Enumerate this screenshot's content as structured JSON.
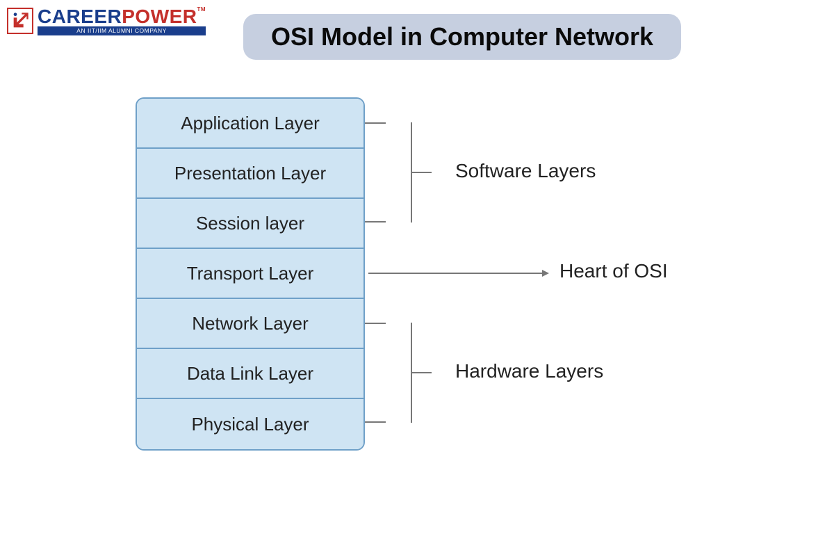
{
  "logo": {
    "line1_a": "CAREER",
    "line1_b": "POWER",
    "tm": "TM",
    "tagline": "AN IIT/IIM ALUMNI COMPANY",
    "color_career": "#1a3e8c",
    "color_power": "#c4302b",
    "tagline_bg": "#1a3e8c"
  },
  "title": {
    "text": "OSI Model in Computer Network",
    "bg": "#c6cfe0",
    "fontsize": 36,
    "fontweight": 900
  },
  "diagram": {
    "layer_height": 72,
    "stack_width": 330,
    "layer_bg": "#cfe4f3",
    "layer_border": "#6fa0c8",
    "layer_fontsize": 26,
    "bracket_color": "#777777",
    "label_fontsize": 28,
    "layers": [
      {
        "label": "Application Layer"
      },
      {
        "label": "Presentation Layer"
      },
      {
        "label": "Session layer"
      },
      {
        "label": "Transport Layer"
      },
      {
        "label": "Network Layer"
      },
      {
        "label": "Data Link Layer"
      },
      {
        "label": "Physical Layer"
      }
    ],
    "groups": [
      {
        "label": "Software Layers",
        "from": 0,
        "to": 2,
        "type": "bracket"
      },
      {
        "label": "Heart of OSI",
        "from": 3,
        "to": 3,
        "type": "arrow"
      },
      {
        "label": "Hardware Layers",
        "from": 4,
        "to": 6,
        "type": "bracket"
      }
    ]
  }
}
